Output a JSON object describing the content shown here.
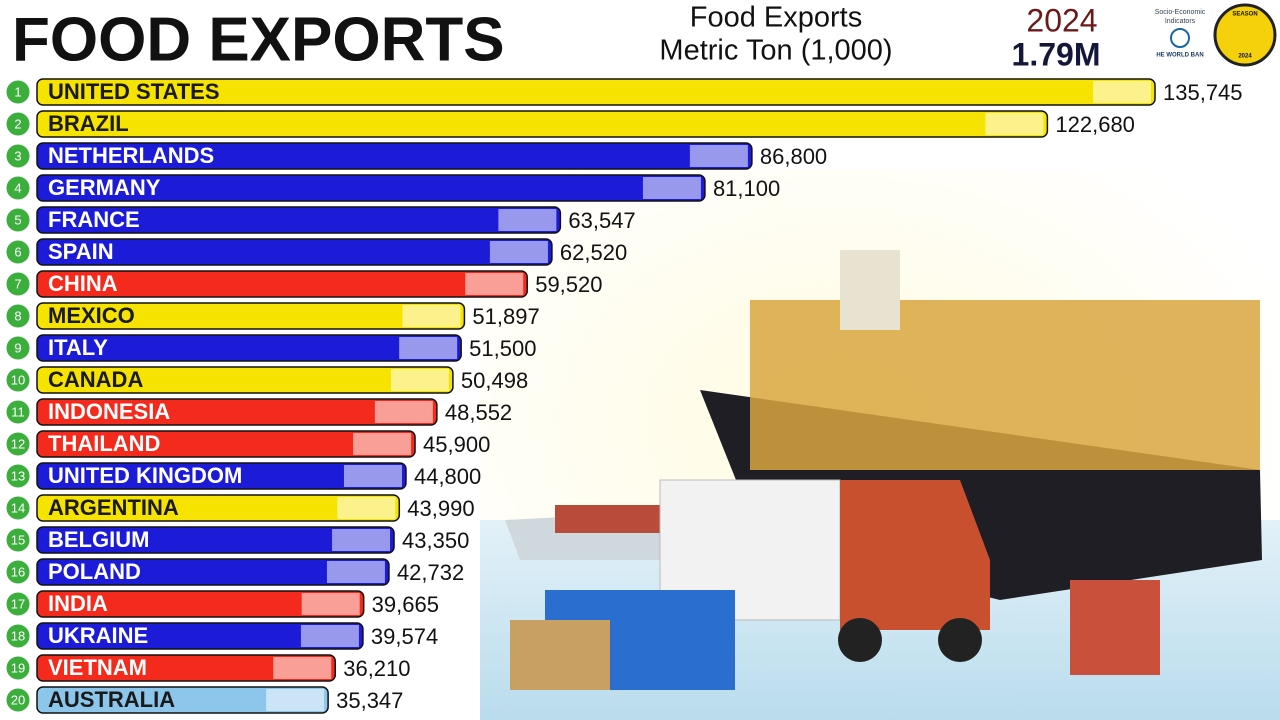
{
  "chart_data": {
    "type": "bar",
    "orientation": "horizontal",
    "title": "FOOD EXPORTS",
    "subtitle": [
      "Food Exports",
      "Metric Ton  (1,000)"
    ],
    "year": "2024",
    "total": "1.79M",
    "logos": [
      "Socio-Economic",
      "Indicators",
      "HE WORLD BAN",
      "SEASON",
      "2024"
    ],
    "ranks": [
      1,
      2,
      3,
      4,
      5,
      6,
      7,
      8,
      9,
      10,
      11,
      12,
      13,
      14,
      15,
      16,
      17,
      18,
      19,
      20
    ],
    "categories": [
      "UNITED STATES",
      "BRAZIL",
      "NETHERLANDS",
      "GERMANY",
      "FRANCE",
      "SPAIN",
      "CHINA",
      "MEXICO",
      "ITALY",
      "CANADA",
      "INDONESIA",
      "THAILAND",
      "UNITED KINGDOM",
      "ARGENTINA",
      "BELGIUM",
      "POLAND",
      "INDIA",
      "UKRAINE",
      "VIETNAM",
      "AUSTRALIA"
    ],
    "values": [
      135745,
      122680,
      86800,
      81100,
      63547,
      62520,
      59520,
      51897,
      51500,
      50498,
      48552,
      45900,
      44800,
      43990,
      43350,
      42732,
      39665,
      39574,
      36210,
      35347
    ],
    "value_labels": [
      "135,745",
      "122,680",
      "86,800",
      "81,100",
      "63,547",
      "62,520",
      "59,520",
      "51,897",
      "51,500",
      "50,498",
      "48,552",
      "45,900",
      "44,800",
      "43,990",
      "43,350",
      "42,732",
      "39,665",
      "39,574",
      "36,210",
      "35,347"
    ],
    "colors": [
      "#f7e300",
      "#f7e300",
      "#1c1cd8",
      "#1c1cd8",
      "#1c1cd8",
      "#1c1cd8",
      "#f42a1c",
      "#f7e300",
      "#1c1cd8",
      "#f7e300",
      "#f42a1c",
      "#f42a1c",
      "#1c1cd8",
      "#f7e300",
      "#1c1cd8",
      "#1c1cd8",
      "#f42a1c",
      "#1c1cd8",
      "#f42a1c",
      "#8cc6ea"
    ],
    "label_colors": [
      "#1a1a1a",
      "#1a1a1a",
      "#ffffff",
      "#ffffff",
      "#ffffff",
      "#ffffff",
      "#ffffff",
      "#1a1a1a",
      "#ffffff",
      "#1a1a1a",
      "#ffffff",
      "#ffffff",
      "#ffffff",
      "#1a1a1a",
      "#ffffff",
      "#ffffff",
      "#ffffff",
      "#ffffff",
      "#ffffff",
      "#1a1a1a"
    ],
    "rank_color": "#3cae3c"
  }
}
